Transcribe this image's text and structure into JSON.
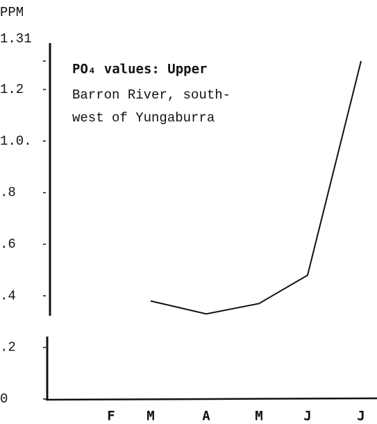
{
  "chart_data": {
    "type": "line",
    "title": [
      "PO₄ values: Upper",
      "Barron River, south-",
      "west of Yungaburra"
    ],
    "y_label": "PPM",
    "categories": [
      "F",
      "M",
      "A",
      "M",
      "J",
      "J"
    ],
    "values": [
      null,
      0.38,
      0.33,
      0.37,
      0.48,
      1.31
    ],
    "color": "#111111",
    "ylim": [
      0,
      1.31
    ],
    "yticks": [
      1.31,
      {
        "value": 1.2,
        "label": "1.2"
      },
      {
        "value": 1.0,
        "label": "1.0."
      },
      {
        "value": 0.8,
        "label": ".8"
      },
      {
        "value": 0.6,
        "label": ".6"
      },
      {
        "value": 0.4,
        "label": ".4"
      },
      {
        "value": 0.2,
        "label": ".2"
      },
      0
    ]
  }
}
